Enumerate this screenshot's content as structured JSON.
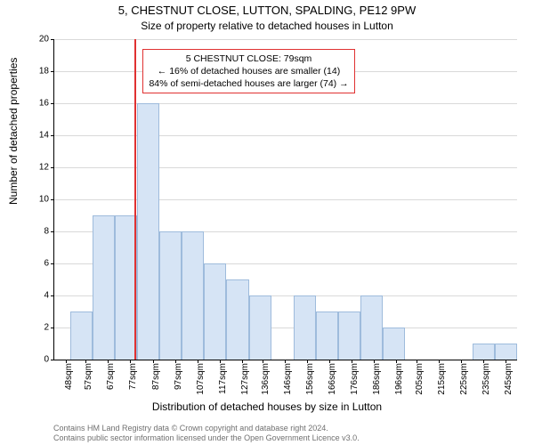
{
  "title_main": "5, CHESTNUT CLOSE, LUTTON, SPALDING, PE12 9PW",
  "title_sub": "Size of property relative to detached houses in Lutton",
  "ylabel": "Number of detached properties",
  "xlabel": "Distribution of detached houses by size in Lutton",
  "chart": {
    "type": "histogram",
    "background_color": "#ffffff",
    "grid_color": "#d9d9d9",
    "axis_color": "#000000",
    "bar_fill": "#d6e4f5",
    "bar_stroke": "#9ebbdc",
    "ref_line_color": "#e03131",
    "annot_border": "#e03131",
    "annot_bg": "#ffffff",
    "xlim": [
      43,
      250
    ],
    "ylim": [
      0,
      20
    ],
    "ytick_step": 2,
    "yticks": [
      0,
      2,
      4,
      6,
      8,
      10,
      12,
      14,
      16,
      18,
      20
    ],
    "bin_width": 10,
    "xticks_at": [
      48,
      57,
      67,
      77,
      87,
      97,
      107,
      117,
      127,
      136,
      146,
      156,
      166,
      176,
      186,
      196,
      205,
      215,
      225,
      235,
      245
    ],
    "xtick_labels": [
      "48sqm",
      "57sqm",
      "67sqm",
      "77sqm",
      "87sqm",
      "97sqm",
      "107sqm",
      "117sqm",
      "127sqm",
      "136sqm",
      "146sqm",
      "156sqm",
      "166sqm",
      "176sqm",
      "186sqm",
      "196sqm",
      "205sqm",
      "215sqm",
      "225sqm",
      "235sqm",
      "245sqm"
    ],
    "bars": [
      {
        "x0": 50,
        "x1": 60,
        "y": 3
      },
      {
        "x0": 60,
        "x1": 70,
        "y": 9
      },
      {
        "x0": 70,
        "x1": 80,
        "y": 9
      },
      {
        "x0": 80,
        "x1": 90,
        "y": 16
      },
      {
        "x0": 90,
        "x1": 100,
        "y": 8
      },
      {
        "x0": 100,
        "x1": 110,
        "y": 8
      },
      {
        "x0": 110,
        "x1": 120,
        "y": 6
      },
      {
        "x0": 120,
        "x1": 130,
        "y": 5
      },
      {
        "x0": 130,
        "x1": 140,
        "y": 4
      },
      {
        "x0": 140,
        "x1": 150,
        "y": 0
      },
      {
        "x0": 150,
        "x1": 160,
        "y": 4
      },
      {
        "x0": 160,
        "x1": 170,
        "y": 3
      },
      {
        "x0": 170,
        "x1": 180,
        "y": 3
      },
      {
        "x0": 180,
        "x1": 190,
        "y": 4
      },
      {
        "x0": 190,
        "x1": 200,
        "y": 2
      },
      {
        "x0": 200,
        "x1": 210,
        "y": 0
      },
      {
        "x0": 210,
        "x1": 220,
        "y": 0
      },
      {
        "x0": 220,
        "x1": 230,
        "y": 0
      },
      {
        "x0": 230,
        "x1": 240,
        "y": 1
      },
      {
        "x0": 240,
        "x1": 250,
        "y": 1
      }
    ],
    "reference_x": 79,
    "annotation": {
      "lines": [
        "5 CHESTNUT CLOSE: 79sqm",
        "← 16% of detached houses are smaller (14)",
        "84% of semi-detached houses are larger (74) →"
      ],
      "box_left_x": 81,
      "box_top_y": 19.4
    }
  },
  "license_line1": "Contains HM Land Registry data © Crown copyright and database right 2024.",
  "license_line2": "Contains public sector information licensed under the Open Government Licence v3.0."
}
